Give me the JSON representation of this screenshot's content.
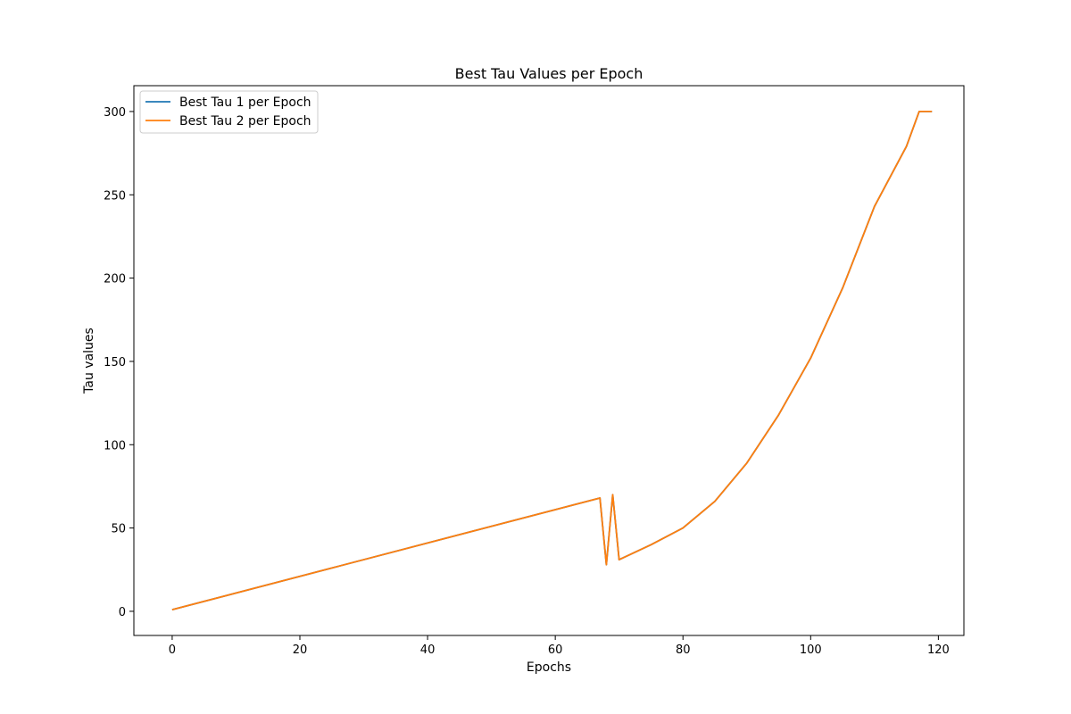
{
  "chart_data": {
    "type": "line",
    "title": "Best Tau Values per Epoch",
    "xlabel": "Epochs",
    "ylabel": "Tau values",
    "xlim": [
      -6,
      124
    ],
    "ylim": [
      -14.5,
      315.5
    ],
    "xticks": [
      0,
      20,
      40,
      60,
      80,
      100,
      120
    ],
    "yticks": [
      0,
      50,
      100,
      150,
      200,
      250,
      300
    ],
    "grid": false,
    "legend_position": "top-left",
    "series": [
      {
        "name": "Best Tau 1 per Epoch",
        "color": "#1f77b4",
        "x": [
          0,
          67,
          68,
          69,
          70,
          75,
          80,
          85,
          90,
          95,
          100,
          105,
          110,
          115,
          117,
          118,
          119
        ],
        "y": [
          1,
          68,
          28,
          70,
          31,
          40,
          50,
          66,
          89,
          118,
          152,
          194,
          243,
          279,
          300,
          300,
          300
        ]
      },
      {
        "name": "Best Tau 2 per Epoch",
        "color": "#ff7f0e",
        "x": [
          0,
          67,
          68,
          69,
          70,
          75,
          80,
          85,
          90,
          95,
          100,
          105,
          110,
          115,
          117,
          118,
          119
        ],
        "y": [
          1,
          68,
          28,
          70,
          31,
          40,
          50,
          66,
          89,
          118,
          152,
          194,
          243,
          279,
          300,
          300,
          300
        ]
      }
    ]
  }
}
